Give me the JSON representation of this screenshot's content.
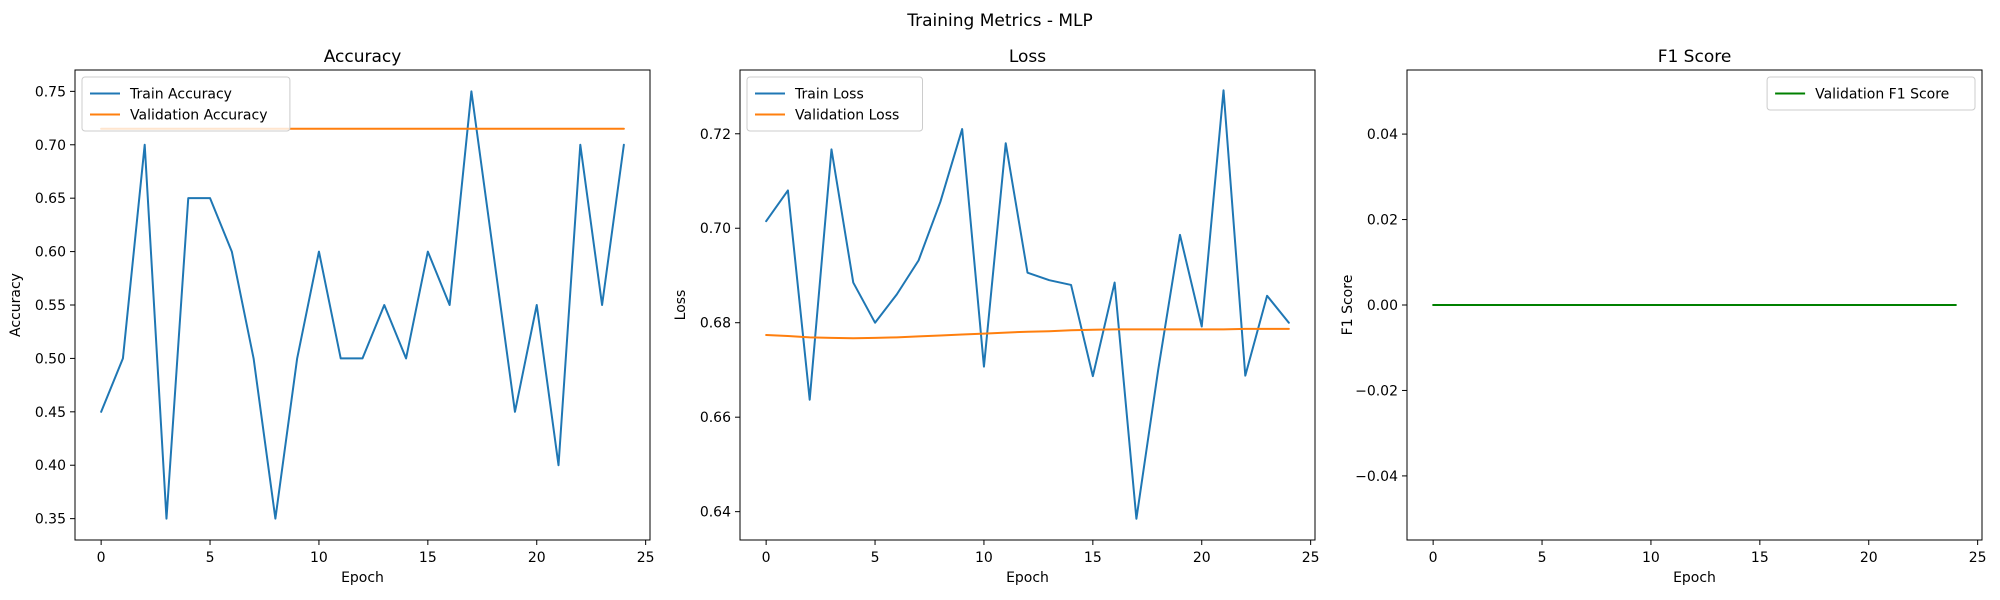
{
  "figure": {
    "title": "Training Metrics - MLP"
  },
  "chart_data": [
    {
      "type": "line",
      "title": "Accuracy",
      "xlabel": "Epoch",
      "ylabel": "Accuracy",
      "xlim": [
        -1.2,
        25.2
      ],
      "ylim": [
        0.33,
        0.77
      ],
      "xticks": [
        0,
        5,
        10,
        15,
        20,
        25
      ],
      "yticks": [
        0.35,
        0.4,
        0.45,
        0.5,
        0.55,
        0.6,
        0.65,
        0.7,
        0.75
      ],
      "ytick_labels": [
        "0.35",
        "0.40",
        "0.45",
        "0.50",
        "0.55",
        "0.60",
        "0.65",
        "0.70",
        "0.75"
      ],
      "legend": "top-left",
      "grid": false,
      "x": [
        0,
        1,
        2,
        3,
        4,
        5,
        6,
        7,
        8,
        9,
        10,
        11,
        12,
        13,
        14,
        15,
        16,
        17,
        18,
        19,
        20,
        21,
        22,
        23,
        24
      ],
      "series": [
        {
          "name": "Train Accuracy",
          "color": "#1f77b4",
          "values": [
            0.45,
            0.5,
            0.7,
            0.35,
            0.65,
            0.65,
            0.6,
            0.5,
            0.35,
            0.5,
            0.6,
            0.5,
            0.5,
            0.55,
            0.5,
            0.6,
            0.55,
            0.75,
            0.6,
            0.45,
            0.55,
            0.4,
            0.7,
            0.55,
            0.7
          ]
        },
        {
          "name": "Validation Accuracy",
          "color": "#ff7f0e",
          "values": [
            0.715,
            0.715,
            0.715,
            0.715,
            0.715,
            0.715,
            0.715,
            0.715,
            0.715,
            0.715,
            0.715,
            0.715,
            0.715,
            0.715,
            0.715,
            0.715,
            0.715,
            0.715,
            0.715,
            0.715,
            0.715,
            0.715,
            0.715,
            0.715,
            0.715
          ]
        }
      ]
    },
    {
      "type": "line",
      "title": "Loss",
      "xlabel": "Epoch",
      "ylabel": "Loss",
      "xlim": [
        -1.2,
        25.2
      ],
      "ylim": [
        0.634,
        0.7335
      ],
      "xticks": [
        0,
        5,
        10,
        15,
        20,
        25
      ],
      "yticks": [
        0.64,
        0.66,
        0.68,
        0.7,
        0.72
      ],
      "ytick_labels": [
        "0.64",
        "0.66",
        "0.68",
        "0.70",
        "0.72"
      ],
      "legend": "top-left",
      "grid": false,
      "x": [
        0,
        1,
        2,
        3,
        4,
        5,
        6,
        7,
        8,
        9,
        10,
        11,
        12,
        13,
        14,
        15,
        16,
        17,
        18,
        19,
        20,
        21,
        22,
        23,
        24
      ],
      "series": [
        {
          "name": "Train Loss",
          "color": "#1f77b4",
          "values": [
            0.7015,
            0.708,
            0.6637,
            0.7167,
            0.6885,
            0.68,
            0.686,
            0.6932,
            0.7056,
            0.721,
            0.6707,
            0.718,
            0.6906,
            0.689,
            0.688,
            0.6687,
            0.6885,
            0.6385,
            0.67,
            0.6986,
            0.6792,
            0.7292,
            0.6688,
            0.6857,
            0.68
          ]
        },
        {
          "name": "Validation Loss",
          "color": "#ff7f0e",
          "values": [
            0.6774,
            0.6772,
            0.6769,
            0.6768,
            0.6767,
            0.6768,
            0.6769,
            0.6771,
            0.6773,
            0.6775,
            0.6777,
            0.6779,
            0.6781,
            0.6782,
            0.6784,
            0.6785,
            0.6786,
            0.6786,
            0.6786,
            0.6786,
            0.6786,
            0.6786,
            0.6787,
            0.6787,
            0.6787
          ]
        }
      ]
    },
    {
      "type": "line",
      "title": "F1 Score",
      "xlabel": "Epoch",
      "ylabel": "F1 Score",
      "xlim": [
        -1.2,
        25.2
      ],
      "ylim": [
        -0.055,
        0.055
      ],
      "xticks": [
        0,
        5,
        10,
        15,
        20,
        25
      ],
      "yticks": [
        -0.04,
        -0.02,
        0.0,
        0.02,
        0.04
      ],
      "ytick_labels": [
        "−0.04",
        "−0.02",
        "0.00",
        "0.02",
        "0.04"
      ],
      "legend": "top-right",
      "grid": false,
      "x": [
        0,
        1,
        2,
        3,
        4,
        5,
        6,
        7,
        8,
        9,
        10,
        11,
        12,
        13,
        14,
        15,
        16,
        17,
        18,
        19,
        20,
        21,
        22,
        23,
        24
      ],
      "series": [
        {
          "name": "Validation F1 Score",
          "color": "#008000",
          "values": [
            0,
            0,
            0,
            0,
            0,
            0,
            0,
            0,
            0,
            0,
            0,
            0,
            0,
            0,
            0,
            0,
            0,
            0,
            0,
            0,
            0,
            0,
            0,
            0,
            0
          ]
        }
      ]
    }
  ]
}
